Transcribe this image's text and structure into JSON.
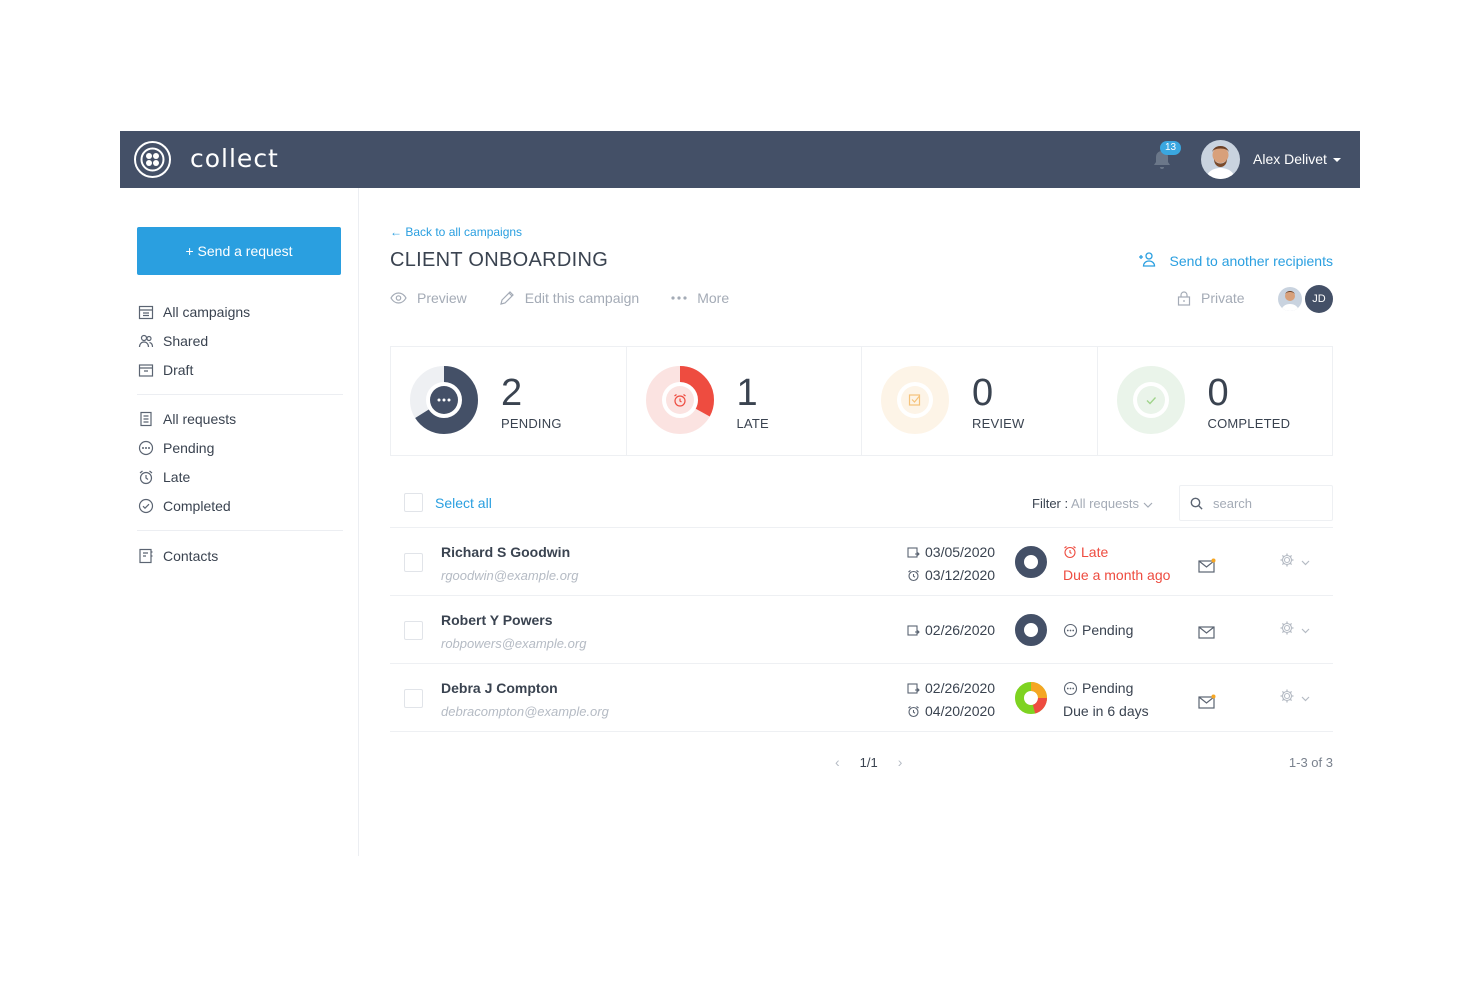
{
  "app": {
    "brand": "collect",
    "notifications": "13",
    "user_name": "Alex Delivet"
  },
  "sidebar": {
    "send_button": "+ Send a request",
    "campaigns": [
      {
        "label": "All campaigns",
        "icon": "campaigns-icon"
      },
      {
        "label": "Shared",
        "icon": "users-icon"
      },
      {
        "label": "Draft",
        "icon": "draft-icon"
      }
    ],
    "requests": [
      {
        "label": "All requests",
        "icon": "requests-icon"
      },
      {
        "label": "Pending",
        "icon": "pending-icon"
      },
      {
        "label": "Late",
        "icon": "alarm-icon"
      },
      {
        "label": "Completed",
        "icon": "check-circle-icon"
      }
    ],
    "contacts": [
      {
        "label": "Contacts",
        "icon": "contacts-icon"
      }
    ]
  },
  "campaign": {
    "back": "← Back to all campaigns",
    "title": "CLIENT ONBOARDING",
    "send_another": "Send to another recipients",
    "actions": {
      "preview": "Preview",
      "edit": "Edit this campaign",
      "more": "More"
    },
    "visibility": "Private",
    "member_initials": "JD"
  },
  "stats": [
    {
      "value": "2",
      "label": "PENDING",
      "color": "#445067",
      "fraction": 0.66
    },
    {
      "value": "1",
      "label": "LATE",
      "color": "#ee4c40",
      "fraction": 0.33
    },
    {
      "value": "0",
      "label": "REVIEW",
      "color": "#f5a623",
      "fraction": 0
    },
    {
      "value": "0",
      "label": "COMPLETED",
      "color": "#7ed321",
      "fraction": 0
    }
  ],
  "list": {
    "select_all": "Select all",
    "filter_label": "Filter :",
    "filter_value": "All requests",
    "search_placeholder": "search",
    "rows": [
      {
        "name": "Richard S Goodwin",
        "email": "rgoodwin@example.org",
        "sent": "03/05/2020",
        "due_date": "03/12/2020",
        "status": "Late",
        "due_text": "Due a month ago",
        "status_color": "#ee4c40",
        "donut": "dark"
      },
      {
        "name": "Robert Y Powers",
        "email": "robpowers@example.org",
        "sent": "02/26/2020",
        "due_date": "",
        "status": "Pending",
        "due_text": "",
        "status_color": "#3a4350",
        "donut": "dark"
      },
      {
        "name": "Debra J Compton",
        "email": "debracompton@example.org",
        "sent": "02/26/2020",
        "due_date": "04/20/2020",
        "status": "Pending",
        "due_text": "Due in 6 days",
        "status_color": "#3a4350",
        "donut": "mixed"
      }
    ],
    "page": "1/1",
    "count": "1-3 of 3"
  }
}
